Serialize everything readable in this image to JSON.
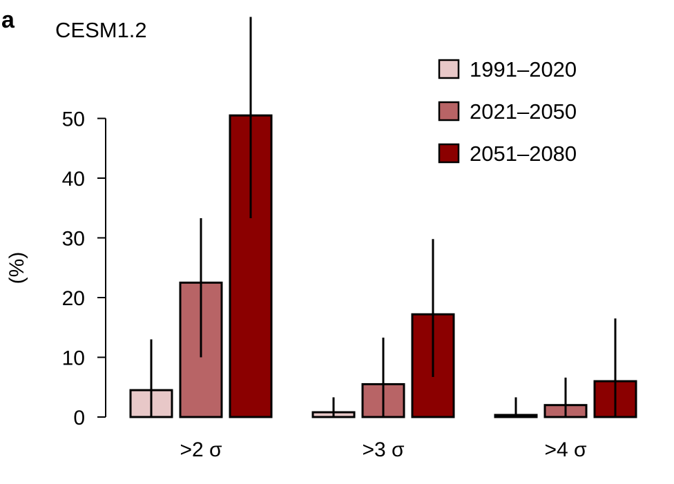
{
  "panel_label": "a",
  "chart_data": {
    "type": "bar",
    "title": "CESM1.2",
    "xlabel": "",
    "ylabel": "(%)",
    "ylim": [
      0,
      50
    ],
    "yticks": [
      0,
      10,
      20,
      30,
      40,
      50
    ],
    "categories": [
      ">2 σ",
      ">3 σ",
      ">4 σ"
    ],
    "series": [
      {
        "name": "1991–2020",
        "color": "#e8c8c8",
        "values": [
          4.5,
          0.8,
          0.3
        ],
        "err_low": [
          0,
          0,
          0
        ],
        "err_high": [
          13,
          3.3,
          3.3
        ]
      },
      {
        "name": "2021–2050",
        "color": "#b86466",
        "values": [
          22.5,
          5.5,
          2.0
        ],
        "err_low": [
          10,
          0,
          0
        ],
        "err_high": [
          33.3,
          13.3,
          6.6
        ]
      },
      {
        "name": "2051–2080",
        "color": "#8b0000",
        "values": [
          50.5,
          17.2,
          6.0
        ],
        "err_low": [
          33.3,
          6.7,
          0
        ],
        "err_high": [
          67,
          29.8,
          16.5
        ]
      }
    ],
    "legend_position": "top-right",
    "grid": false
  }
}
